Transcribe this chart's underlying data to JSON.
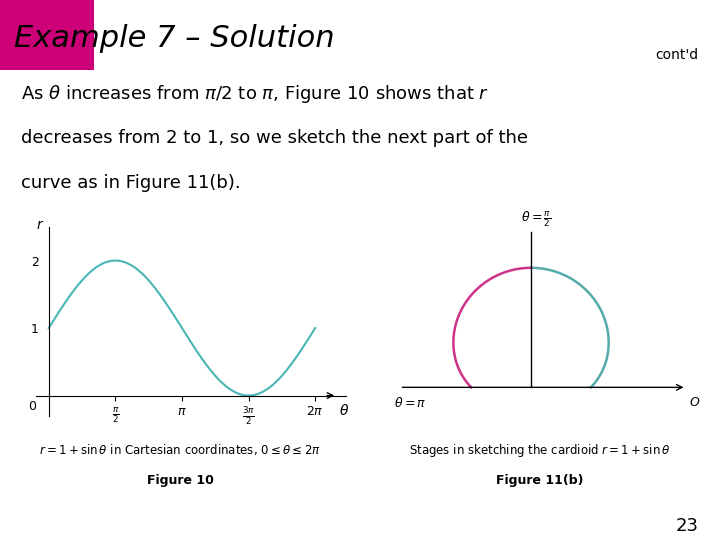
{
  "title": "Example 7 – Solution",
  "contd": "cont'd",
  "title_bg_color": "#d3d3d3",
  "title_pink_block_color": "#cc0077",
  "body_text_line1": "As $\\theta$ increases from $\\pi/2$ to $\\pi$, Figure 10 shows that $r$",
  "body_text_line2": "decreases from 2 to 1, so we sketch the next part of the",
  "body_text_line3": "curve as in Figure 11(b).",
  "fig10_caption": "r = 1 + sin θ in Cartesian coordinates, 0≤ θ≤ 2π",
  "fig10_label": "Figure 10",
  "fig11b_label": "Figure 11(b)",
  "fig11b_caption": "Stages in sketching the cardioid r = 1 + sin θ",
  "page_number": "23",
  "curve_color_fig10": "#4ab5b5",
  "curve_color_fig11b_pink": "#cc3388",
  "curve_color_fig11b_teal": "#55aaaa",
  "bg_color": "#ffffff"
}
